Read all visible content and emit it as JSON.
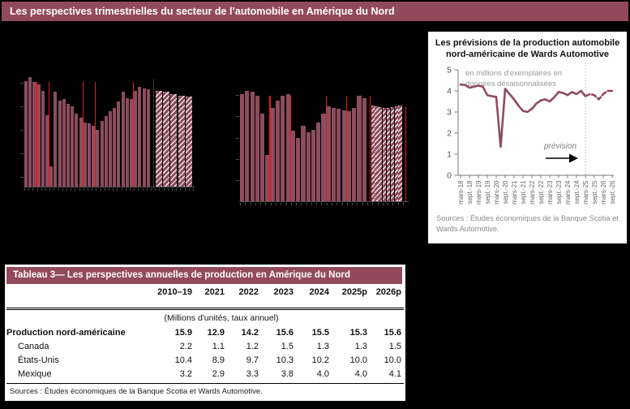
{
  "header": {
    "title": "Les perspectives trimestrielles du secteur de l’automobile en Amérique du Nord"
  },
  "colors": {
    "page_bg": "#000000",
    "banner": "#93495c",
    "bar": "#8c4d5e",
    "bar_separator": "#e81a1a",
    "line": "#8e4b5e",
    "panel_bg": "#ffffff"
  },
  "chart_data": [
    {
      "type": "bar",
      "id": "sales-history-chart",
      "note": "quarterly history bars plus hatched forecast bars; axis labels not visible against black background",
      "values": [
        4.35,
        4.5,
        4.3,
        4.2,
        3.95,
        2.95,
        0.85,
        3.9,
        3.55,
        3.6,
        3.4,
        3.3,
        3.0,
        2.85,
        2.65,
        2.6,
        2.5,
        2.35,
        2.7,
        2.9,
        3.1,
        3.25,
        3.5,
        3.9,
        3.65,
        3.6,
        3.95,
        4.1,
        4.05,
        4.0
      ],
      "forecast_values": [
        3.95,
        3.9,
        3.8,
        3.75,
        3.7
      ],
      "separators_after": [
        3,
        6,
        14,
        17,
        26
      ]
    },
    {
      "type": "bar",
      "id": "production-history-chart",
      "note": "quarterly history bars plus hatched forecast bars; axis labels not visible against black background",
      "values": [
        4.4,
        4.55,
        4.5,
        4.35,
        3.6,
        1.9,
        3.85,
        4.15,
        4.35,
        4.4,
        2.9,
        2.6,
        3.1,
        2.85,
        2.95,
        3.25,
        3.6,
        3.9,
        3.85,
        3.8,
        3.75,
        3.7,
        3.85,
        4.35,
        4.25
      ],
      "forecast_values": [
        3.95,
        3.9,
        3.87,
        3.85,
        3.85,
        3.87,
        3.9,
        3.92
      ],
      "separators_after": [
        6,
        10,
        17,
        21
      ]
    },
    {
      "type": "line",
      "id": "wards-forecast-chart",
      "title": "Les prévisions de la production automobile nord-américaine de Wards Automotive",
      "annotation_line1": "en millions d'exemplaires en",
      "annotation_line2": "données désaisonnalisées",
      "prevision_label": "prévision",
      "yticks": [
        0,
        1,
        2,
        3,
        4,
        5
      ],
      "ylim": [
        0,
        5
      ],
      "x_labels": [
        "mars-18",
        "sept.-18",
        "mars-19",
        "sept.-19",
        "mars-20",
        "sept.-20",
        "mars-21",
        "sept.-21",
        "mars-22",
        "sept.-22",
        "mars-23",
        "sept.-23",
        "mars-24",
        "sept.-24",
        "mars-25",
        "sept.-25",
        "mars-26",
        "sept.-26"
      ],
      "values_historical": [
        4.3,
        4.28,
        4.15,
        4.2,
        4.25,
        4.2,
        3.8,
        3.75,
        3.72,
        1.35,
        4.1,
        3.85,
        3.6,
        3.3,
        3.05,
        3.0,
        3.15,
        3.4,
        3.55,
        3.6,
        3.5,
        3.7,
        3.95,
        3.9,
        3.8,
        3.95,
        3.85,
        4.0,
        3.75
      ],
      "values_forecast": [
        3.85,
        3.8,
        3.6,
        3.85,
        4.0,
        4.0
      ],
      "sources": "Sources : Études économiques de la Banque Scotia et Wards Automotive."
    }
  ],
  "table": {
    "title": "Tableau 3— Les perspectives annuelles de production en Amérique du Nord",
    "columns": [
      "2010–19",
      "2021",
      "2022",
      "2023",
      "2024",
      "2025p",
      "2026p"
    ],
    "units_note": "(Millions d'unités, taux annuel)",
    "rows": [
      {
        "label": "Production nord-américaine",
        "bold": true,
        "values": [
          "15.9",
          "12.9",
          "14.2",
          "15.6",
          "15.5",
          "15.3",
          "15.6"
        ]
      },
      {
        "label": "Canada",
        "bold": false,
        "values": [
          "2.2",
          "1.1",
          "1.2",
          "1.5",
          "1.3",
          "1.3",
          "1.5"
        ]
      },
      {
        "label": "États-Unis",
        "bold": false,
        "values": [
          "10.4",
          "8.9",
          "9.7",
          "10.3",
          "10.2",
          "10.0",
          "10.0"
        ]
      },
      {
        "label": "Mexique",
        "bold": false,
        "values": [
          "3.2",
          "2.9",
          "3.3",
          "3.8",
          "4.0",
          "4.0",
          "4.1"
        ]
      }
    ],
    "sources": "Sources : Études économiques de la Banque Scotia et Wards Automotive."
  }
}
